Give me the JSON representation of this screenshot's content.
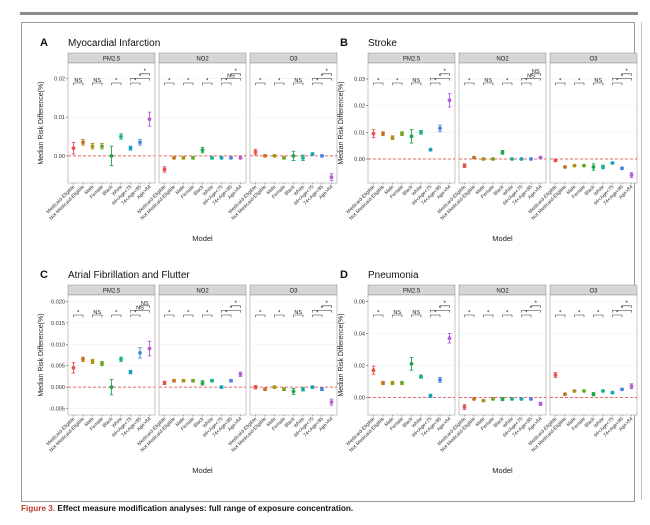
{
  "caption": {
    "label": "Figure 3.",
    "text": "Effect measure modification analyses: full range of exposure concentration."
  },
  "colors": {
    "Medicaid-Eligible": "#e8524a",
    "Not Medicaid-Eligible": "#c4741c",
    "Male": "#a59216",
    "Female": "#6ba81e",
    "Black": "#1ea84a",
    "White": "#1ab08e",
    "64<Age<75": "#16a2bc",
    "74<Age<85": "#4a86e0",
    "Age>84": "#b25fd8",
    "ref_line": "#e23b3b",
    "strip_bg": "#d6d6d6",
    "grid": "#ececec"
  },
  "chart_data": [
    {
      "type": "errorbar",
      "letter": "A",
      "title": "Myocardial Infarction",
      "xlabel": "Model",
      "ylabel": "Median Risk Difference(%)",
      "ylim": [
        -0.007,
        0.024
      ],
      "yticks": [
        0.0,
        0.01,
        0.02
      ],
      "yticklabels": [
        "0.00",
        "0.01",
        "0.02"
      ],
      "categories": [
        "Medicaid-Eligible",
        "Not Medicaid-Eligible",
        "Male",
        "Female",
        "Black",
        "White",
        "64<Age<75",
        "74<Age<85",
        "Age>84"
      ],
      "panels": [
        {
          "pollutant": "PM2.5",
          "values": [
            0.002,
            0.0035,
            0.0025,
            0.0025,
            0.0,
            0.005,
            0.002,
            0.0035,
            0.0095
          ],
          "errors": [
            0.0015,
            0.0007,
            0.0007,
            0.0007,
            0.0025,
            0.0007,
            0.0005,
            0.0007,
            0.0018
          ],
          "sig": [
            {
              "from": 0,
              "to": 1,
              "label": "NS",
              "level": 0
            },
            {
              "from": 2,
              "to": 3,
              "label": "NS",
              "level": 0
            },
            {
              "from": 4,
              "to": 5,
              "label": "*",
              "level": 0
            },
            {
              "from": 6,
              "to": 7,
              "label": "*",
              "level": 0
            },
            {
              "from": 6,
              "to": 8,
              "label": "*",
              "level": 1
            },
            {
              "from": 7,
              "to": 8,
              "label": "*",
              "level": 2
            }
          ]
        },
        {
          "pollutant": "NO2",
          "values": [
            -0.0035,
            -0.0005,
            -0.0005,
            -0.0005,
            0.0015,
            -0.0005,
            -0.0005,
            -0.0005,
            -0.0005
          ],
          "errors": [
            0.0007,
            0.0003,
            0.0003,
            0.0003,
            0.0007,
            0.0003,
            0.0003,
            0.0003,
            0.0003
          ],
          "sig": [
            {
              "from": 0,
              "to": 1,
              "label": "*",
              "level": 0
            },
            {
              "from": 2,
              "to": 3,
              "label": "*",
              "level": 0
            },
            {
              "from": 4,
              "to": 5,
              "label": "*",
              "level": 0
            },
            {
              "from": 6,
              "to": 7,
              "label": "*",
              "level": 0
            },
            {
              "from": 6,
              "to": 8,
              "label": "NS",
              "level": 1
            },
            {
              "from": 7,
              "to": 8,
              "label": "*",
              "level": 2
            }
          ]
        },
        {
          "pollutant": "O3",
          "values": [
            0.001,
            0.0,
            0.0,
            -0.0005,
            0.0,
            -0.0005,
            0.0005,
            0.0,
            -0.0055
          ],
          "errors": [
            0.0007,
            0.0003,
            0.0003,
            0.0003,
            0.0012,
            0.0007,
            0.0003,
            0.0003,
            0.0009
          ],
          "sig": [
            {
              "from": 0,
              "to": 1,
              "label": "*",
              "level": 0
            },
            {
              "from": 2,
              "to": 3,
              "label": "*",
              "level": 0
            },
            {
              "from": 4,
              "to": 5,
              "label": "NS",
              "level": 0
            },
            {
              "from": 6,
              "to": 7,
              "label": "*",
              "level": 0
            },
            {
              "from": 6,
              "to": 8,
              "label": "*",
              "level": 1
            },
            {
              "from": 7,
              "to": 8,
              "label": "*",
              "level": 2
            }
          ]
        }
      ]
    },
    {
      "type": "errorbar",
      "letter": "B",
      "title": "Stroke",
      "xlabel": "Model",
      "ylabel": "Median Risk Difference(%)",
      "ylim": [
        -0.009,
        0.036
      ],
      "yticks": [
        0.0,
        0.01,
        0.02,
        0.03
      ],
      "yticklabels": [
        "0.00",
        "0.01",
        "0.02",
        "0.03"
      ],
      "categories": [
        "Medicaid-Eligible",
        "Not Medicaid-Eligible",
        "Male",
        "Female",
        "Black",
        "White",
        "64<Age<75",
        "74<Age<85",
        "Age>84"
      ],
      "panels": [
        {
          "pollutant": "PM2.5",
          "values": [
            0.0095,
            0.0095,
            0.008,
            0.0095,
            0.0085,
            0.01,
            0.0035,
            0.0115,
            0.022
          ],
          "errors": [
            0.0015,
            0.0007,
            0.0007,
            0.0007,
            0.0025,
            0.0007,
            0.0005,
            0.0012,
            0.0025
          ],
          "sig": [
            {
              "from": 0,
              "to": 1,
              "label": "*",
              "level": 0
            },
            {
              "from": 2,
              "to": 3,
              "label": "*",
              "level": 0
            },
            {
              "from": 4,
              "to": 5,
              "label": "NS",
              "level": 0
            },
            {
              "from": 6,
              "to": 7,
              "label": "*",
              "level": 0
            },
            {
              "from": 6,
              "to": 8,
              "label": "*",
              "level": 1
            },
            {
              "from": 7,
              "to": 8,
              "label": "*",
              "level": 2
            }
          ]
        },
        {
          "pollutant": "NO2",
          "values": [
            -0.0025,
            0.0005,
            0.0,
            0.0,
            0.0025,
            0.0,
            0.0,
            0.0,
            0.0005
          ],
          "errors": [
            0.0007,
            0.0003,
            0.0003,
            0.0003,
            0.0007,
            0.0003,
            0.0003,
            0.0003,
            0.0003
          ],
          "sig": [
            {
              "from": 0,
              "to": 1,
              "label": "*",
              "level": 0
            },
            {
              "from": 2,
              "to": 3,
              "label": "NS",
              "level": 0
            },
            {
              "from": 4,
              "to": 5,
              "label": "*",
              "level": 0
            },
            {
              "from": 6,
              "to": 7,
              "label": "*",
              "level": 0
            },
            {
              "from": 6,
              "to": 8,
              "label": "NS",
              "level": 1
            },
            {
              "from": 7,
              "to": 8,
              "label": "NS",
              "level": 2
            }
          ]
        },
        {
          "pollutant": "O3",
          "values": [
            -0.0005,
            -0.003,
            -0.0025,
            -0.0025,
            -0.003,
            -0.003,
            -0.0015,
            -0.0035,
            -0.006
          ],
          "errors": [
            0.0005,
            0.0003,
            0.0003,
            0.0003,
            0.0012,
            0.0007,
            0.0003,
            0.0003,
            0.0009
          ],
          "sig": [
            {
              "from": 0,
              "to": 1,
              "label": "*",
              "level": 0
            },
            {
              "from": 2,
              "to": 3,
              "label": "*",
              "level": 0
            },
            {
              "from": 4,
              "to": 5,
              "label": "NS",
              "level": 0
            },
            {
              "from": 6,
              "to": 7,
              "label": "*",
              "level": 0
            },
            {
              "from": 6,
              "to": 8,
              "label": "*",
              "level": 1
            },
            {
              "from": 7,
              "to": 8,
              "label": "*",
              "level": 2
            }
          ]
        }
      ]
    },
    {
      "type": "errorbar",
      "letter": "C",
      "title": "Atrial Fibrillation and Flutter",
      "xlabel": "Model",
      "ylabel": "Median Risk Difference(%)",
      "ylim": [
        -0.0065,
        0.0215
      ],
      "yticks": [
        -0.005,
        0.0,
        0.005,
        0.01,
        0.015,
        0.02
      ],
      "yticklabels": [
        "-0.005",
        "0.000",
        "0.005",
        "0.010",
        "0.015",
        "0.020"
      ],
      "categories": [
        "Medicaid-Eligible",
        "Not Medicaid-Eligible",
        "Male",
        "Female",
        "Black",
        "White",
        "64<Age<75",
        "74<Age<85",
        "Age>84"
      ],
      "panels": [
        {
          "pollutant": "PM2.5",
          "values": [
            0.0045,
            0.0065,
            0.006,
            0.0055,
            0.0,
            0.0065,
            0.0035,
            0.008,
            0.009
          ],
          "errors": [
            0.0012,
            0.0005,
            0.0005,
            0.0005,
            0.0018,
            0.0005,
            0.0004,
            0.0012,
            0.0017
          ],
          "sig": [
            {
              "from": 0,
              "to": 1,
              "label": "*",
              "level": 0
            },
            {
              "from": 2,
              "to": 3,
              "label": "NS",
              "level": 0
            },
            {
              "from": 4,
              "to": 5,
              "label": "*",
              "level": 0
            },
            {
              "from": 6,
              "to": 7,
              "label": "*",
              "level": 0
            },
            {
              "from": 6,
              "to": 8,
              "label": "NS",
              "level": 1
            },
            {
              "from": 7,
              "to": 8,
              "label": "NS",
              "level": 2
            }
          ]
        },
        {
          "pollutant": "NO2",
          "values": [
            0.001,
            0.0015,
            0.0015,
            0.0015,
            0.001,
            0.0015,
            0.0,
            0.0015,
            0.003
          ],
          "errors": [
            0.0004,
            0.0003,
            0.0003,
            0.0003,
            0.0005,
            0.0003,
            0.0003,
            0.0003,
            0.0005
          ],
          "sig": [
            {
              "from": 0,
              "to": 1,
              "label": "*",
              "level": 0
            },
            {
              "from": 2,
              "to": 3,
              "label": "*",
              "level": 0
            },
            {
              "from": 4,
              "to": 5,
              "label": "*",
              "level": 0
            },
            {
              "from": 6,
              "to": 7,
              "label": "*",
              "level": 0
            },
            {
              "from": 6,
              "to": 8,
              "label": "*",
              "level": 1
            },
            {
              "from": 7,
              "to": 8,
              "label": "*",
              "level": 2
            }
          ]
        },
        {
          "pollutant": "O3",
          "values": [
            0.0,
            -0.0005,
            0.0,
            -0.0005,
            -0.001,
            -0.0005,
            0.0,
            -0.0005,
            -0.0035
          ],
          "errors": [
            0.0004,
            0.0003,
            0.0003,
            0.0003,
            0.0007,
            0.0004,
            0.0003,
            0.0003,
            0.0007
          ],
          "sig": [
            {
              "from": 0,
              "to": 1,
              "label": "*",
              "level": 0
            },
            {
              "from": 2,
              "to": 3,
              "label": "*",
              "level": 0
            },
            {
              "from": 4,
              "to": 5,
              "label": "NS",
              "level": 0
            },
            {
              "from": 6,
              "to": 7,
              "label": "*",
              "level": 0
            },
            {
              "from": 6,
              "to": 8,
              "label": "*",
              "level": 1
            },
            {
              "from": 7,
              "to": 8,
              "label": "*",
              "level": 2
            }
          ]
        }
      ]
    },
    {
      "type": "errorbar",
      "letter": "D",
      "title": "Pneumonia",
      "xlabel": "Model",
      "ylabel": "Median Risk Difference(%)",
      "ylim": [
        -0.011,
        0.064
      ],
      "yticks": [
        0.0,
        0.02,
        0.04,
        0.06
      ],
      "yticklabels": [
        "0.00",
        "0.02",
        "0.04",
        "0.06"
      ],
      "categories": [
        "Medicaid-Eligible",
        "Not Medicaid-Eligible",
        "Male",
        "Female",
        "Black",
        "White",
        "64<Age<75",
        "74<Age<85",
        "Age>84"
      ],
      "panels": [
        {
          "pollutant": "PM2.5",
          "values": [
            0.017,
            0.009,
            0.009,
            0.009,
            0.021,
            0.013,
            0.001,
            0.011,
            0.037
          ],
          "errors": [
            0.0025,
            0.001,
            0.001,
            0.001,
            0.004,
            0.001,
            0.001,
            0.0015,
            0.003
          ],
          "sig": [
            {
              "from": 0,
              "to": 1,
              "label": "*",
              "level": 0
            },
            {
              "from": 2,
              "to": 3,
              "label": "NS",
              "level": 0
            },
            {
              "from": 4,
              "to": 5,
              "label": "NS",
              "level": 0
            },
            {
              "from": 6,
              "to": 7,
              "label": "*",
              "level": 0
            },
            {
              "from": 6,
              "to": 8,
              "label": "*",
              "level": 1
            },
            {
              "from": 7,
              "to": 8,
              "label": "*",
              "level": 2
            }
          ]
        },
        {
          "pollutant": "NO2",
          "values": [
            -0.006,
            -0.001,
            -0.002,
            -0.001,
            -0.001,
            -0.001,
            -0.001,
            -0.001,
            -0.004
          ],
          "errors": [
            0.0015,
            0.0005,
            0.0005,
            0.0005,
            0.001,
            0.0005,
            0.0005,
            0.0005,
            0.001
          ],
          "sig": [
            {
              "from": 0,
              "to": 1,
              "label": "*",
              "level": 0
            },
            {
              "from": 2,
              "to": 3,
              "label": "*",
              "level": 0
            },
            {
              "from": 4,
              "to": 5,
              "label": "*",
              "level": 0
            },
            {
              "from": 6,
              "to": 7,
              "label": "*",
              "level": 0
            },
            {
              "from": 6,
              "to": 8,
              "label": "*",
              "level": 1
            },
            {
              "from": 7,
              "to": 8,
              "label": "*",
              "level": 2
            }
          ]
        },
        {
          "pollutant": "O3",
          "values": [
            0.014,
            0.002,
            0.004,
            0.004,
            0.002,
            0.004,
            0.003,
            0.005,
            0.007
          ],
          "errors": [
            0.0015,
            0.0005,
            0.0005,
            0.0005,
            0.001,
            0.0005,
            0.0005,
            0.0005,
            0.0015
          ],
          "sig": [
            {
              "from": 0,
              "to": 1,
              "label": "*",
              "level": 0
            },
            {
              "from": 2,
              "to": 3,
              "label": "*",
              "level": 0
            },
            {
              "from": 4,
              "to": 5,
              "label": "*",
              "level": 0
            },
            {
              "from": 6,
              "to": 7,
              "label": "*",
              "level": 0
            },
            {
              "from": 6,
              "to": 8,
              "label": "*",
              "level": 1
            },
            {
              "from": 7,
              "to": 8,
              "label": "*",
              "level": 2
            }
          ]
        }
      ]
    }
  ]
}
